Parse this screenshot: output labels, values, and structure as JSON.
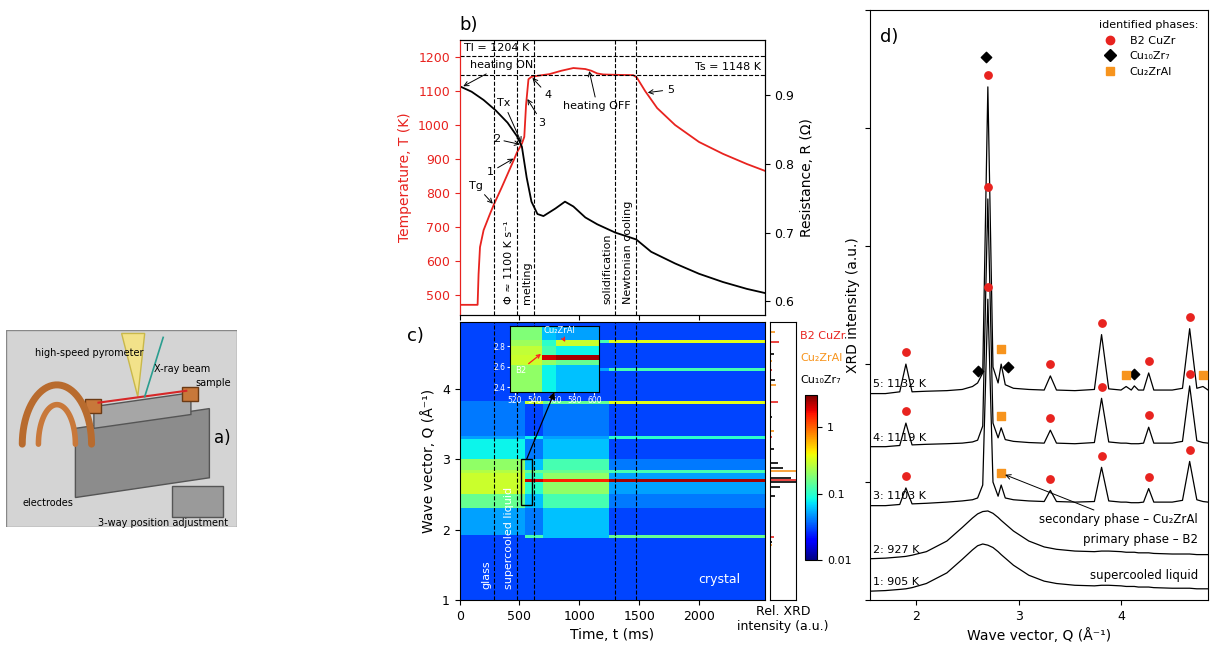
{
  "chart_data": [
    {
      "type": "diagram",
      "panel": "a)",
      "labels": [
        "high-speed pyrometer",
        "X-ray beam",
        "sample",
        "electrodes",
        "3-way position adjustment"
      ]
    },
    {
      "type": "line",
      "panel": "b)",
      "xlim": [
        0,
        2550
      ],
      "xticks": [
        0,
        500,
        1000,
        1500,
        2000
      ],
      "tick_labels": "y",
      "ylabel": "Temperature, T (K)",
      "ylim": [
        440,
        1250
      ],
      "yticks": [
        500,
        600,
        700,
        800,
        900,
        1000,
        1100,
        1200
      ],
      "y2label": "Resistance, R (Ω)",
      "y2lim": [
        0.58,
        0.98
      ],
      "y2ticks": [
        0.6,
        0.7,
        0.8,
        0.9
      ],
      "series": [
        {
          "color": "#e8231f",
          "x": [
            0,
            150,
            158,
            170,
            200,
            250,
            285,
            350,
            400,
            450,
            480,
            520,
            540,
            555,
            575,
            600,
            650,
            750,
            850,
            950,
            1050,
            1100,
            1150,
            1200,
            1300,
            1450,
            1480,
            1550,
            1650,
            1800,
            2000,
            2200,
            2400,
            2550
          ],
          "values": [
            470,
            470,
            560,
            640,
            690,
            735,
            765,
            815,
            855,
            895,
            920,
            945,
            965,
            1060,
            1135,
            1142,
            1145,
            1150,
            1160,
            1168,
            1165,
            1160,
            1152,
            1149,
            1148,
            1147,
            1140,
            1100,
            1050,
            1000,
            950,
            915,
            885,
            865
          ]
        },
        {
          "color": "#000000",
          "axis": "y2",
          "x": [
            0,
            100,
            200,
            300,
            400,
            480,
            520,
            560,
            600,
            650,
            700,
            800,
            880,
            950,
            1050,
            1150,
            1300,
            1475,
            1600,
            1800,
            2000,
            2200,
            2400,
            2550
          ],
          "values": [
            0.913,
            0.905,
            0.893,
            0.878,
            0.86,
            0.84,
            0.825,
            0.78,
            0.745,
            0.727,
            0.724,
            0.735,
            0.745,
            0.738,
            0.722,
            0.712,
            0.7,
            0.69,
            0.672,
            0.655,
            0.64,
            0.628,
            0.618,
            0.612
          ]
        }
      ],
      "hlines": [
        {
          "y": 1204,
          "label": "Tl = 1204 K"
        },
        {
          "y": 1148,
          "label": "Ts = 1148 K"
        }
      ],
      "vlines": [
        {
          "x": 285
        },
        {
          "x": 480,
          "label": "Φ ≈ 1100 K s⁻¹"
        },
        {
          "x": 625,
          "label": "melting"
        },
        {
          "x": 1296,
          "label": "solidification"
        },
        {
          "x": 1474,
          "label": "Newtonian cooling"
        }
      ],
      "annotations": [
        {
          "text": "heating ON",
          "x": 20,
          "y": 0.912,
          "axis": "y2"
        },
        {
          "text": "Tg",
          "x": 285,
          "y": 765
        },
        {
          "text": "Tx",
          "x": 520,
          "y": 945
        },
        {
          "text": "1",
          "x": 460,
          "y": 903
        },
        {
          "text": "2",
          "x": 515,
          "y": 942
        },
        {
          "text": "3",
          "x": 560,
          "y": 1080
        },
        {
          "text": "4",
          "x": 600,
          "y": 1142
        },
        {
          "text": "heating OFF",
          "x": 1080,
          "y": 1163
        },
        {
          "text": "5",
          "x": 1560,
          "y": 1095
        }
      ]
    },
    {
      "type": "heatmap",
      "panel": "c)",
      "xlabel": "Time, t (ms)",
      "ylabel": "Wave vector, Q (Å⁻¹)",
      "xlim": [
        0,
        2550
      ],
      "xticks": [
        0,
        500,
        1000,
        1500,
        2000
      ],
      "ylim": [
        1,
        4.95
      ],
      "yticks": [
        1,
        2,
        3,
        4
      ],
      "x_edges": [
        0,
        548,
        700,
        1250,
        2550
      ],
      "y_edges": [
        1.0,
        1.88,
        1.92,
        2.3,
        2.5,
        2.68,
        2.72,
        2.81,
        2.85,
        3.0,
        3.29,
        3.33,
        3.79,
        3.83,
        4.25,
        4.29,
        4.65,
        4.69,
        4.95
      ],
      "cells": [
        [
          0.03,
          0.03,
          0.03,
          0.03
        ],
        [
          0.03,
          0.12,
          0.06,
          0.15
        ],
        [
          0.05,
          0.04,
          0.06,
          0.03
        ],
        [
          0.15,
          0.06,
          0.12,
          0.04
        ],
        [
          0.3,
          0.1,
          0.2,
          0.05
        ],
        [
          0.3,
          2.0,
          1.5,
          2.5
        ],
        [
          0.3,
          0.1,
          0.2,
          0.05
        ],
        [
          0.25,
          0.15,
          0.15,
          0.12
        ],
        [
          0.2,
          0.06,
          0.12,
          0.04
        ],
        [
          0.08,
          0.04,
          0.06,
          0.03
        ],
        [
          0.05,
          0.08,
          0.05,
          0.1
        ],
        [
          0.04,
          0.03,
          0.04,
          0.03
        ],
        [
          0.04,
          0.3,
          0.15,
          0.35
        ],
        [
          0.03,
          0.03,
          0.03,
          0.03
        ],
        [
          0.03,
          0.1,
          0.05,
          0.12
        ],
        [
          0.03,
          0.03,
          0.03,
          0.03
        ],
        [
          0.03,
          0.3,
          0.12,
          0.35
        ],
        [
          0.03,
          0.03,
          0.03,
          0.03
        ]
      ],
      "colorbar": {
        "lim": [
          0.01,
          3
        ],
        "ticks": [
          0.01,
          0.1,
          1
        ],
        "log": true
      },
      "vlines": [
        {
          "x": 285,
          "label": "glass"
        },
        {
          "x": 480,
          "label": "supercooled liquid"
        },
        {
          "x": 625
        },
        {
          "x": 1296
        },
        {
          "x": 1474
        }
      ],
      "texts": [
        "crystal"
      ],
      "reference_xlabel": "Rel. XRD intensity (a.u.)",
      "reference_xlim": [
        0,
        1
      ],
      "reference_patterns": [
        {
          "name": "B2 CuZr",
          "color": "#e8231f",
          "x": [
            1.9,
            2.7,
            3.31,
            3.81,
            4.27,
            4.67
          ],
          "values": [
            0.15,
            1.0,
            0.08,
            0.3,
            0.1,
            0.35
          ]
        },
        {
          "name": "Cu₂ZrAl",
          "color": "#f7941d",
          "x": [
            1.78,
            2.83,
            3.4,
            4.05,
            4.4,
            4.8
          ],
          "values": [
            0.1,
            1.0,
            0.15,
            0.25,
            0.1,
            0.2
          ]
        },
        {
          "name": "Cu₁₀Zr₇",
          "color": "#000000",
          "x": [
            1.82,
            2.48,
            2.6,
            2.68,
            2.73,
            2.87,
            2.95,
            3.15,
            3.6,
            4.13,
            4.5
          ],
          "values": [
            0.1,
            0.2,
            0.4,
            1.0,
            0.8,
            0.5,
            0.3,
            0.15,
            0.1,
            0.2,
            0.15
          ]
        }
      ],
      "inset": {
        "xlim": [
          515,
          605
        ],
        "xticks": [
          520,
          540,
          560,
          580,
          600
        ],
        "ylim": [
          2.35,
          3.0
        ],
        "yticks": [
          2.4,
          2.6,
          2.8
        ],
        "x_edges": [
          515,
          548,
          562,
          605
        ],
        "y_edges": [
          2.35,
          2.62,
          2.67,
          2.72,
          2.8,
          2.86,
          3.0
        ],
        "cells": [
          [
            0.2,
            0.08,
            0.06
          ],
          [
            0.3,
            0.2,
            0.15
          ],
          [
            0.3,
            2.0,
            2.5
          ],
          [
            0.28,
            0.12,
            0.08
          ],
          [
            0.22,
            0.1,
            0.3
          ],
          [
            0.18,
            0.06,
            0.05
          ]
        ],
        "labels": [
          "Cu₂ZrAl",
          "B2"
        ]
      }
    },
    {
      "type": "line",
      "panel": "d)",
      "xlabel": "Wave vector, Q (Å⁻¹)",
      "ylabel": "XRD intensity (a.u.)",
      "xlim": [
        1.55,
        4.85
      ],
      "xticks": [
        2,
        3,
        4
      ],
      "ylim": [
        0,
        100
      ],
      "yticks": [
        0,
        20,
        40,
        60,
        80,
        100
      ],
      "tick_labels": "x",
      "x": [
        1.55,
        1.7,
        1.84,
        1.9,
        1.96,
        2.1,
        2.3,
        2.45,
        2.55,
        2.6,
        2.65,
        2.7,
        2.75,
        2.8,
        2.83,
        2.87,
        2.95,
        3.1,
        3.25,
        3.31,
        3.37,
        3.55,
        3.74,
        3.81,
        3.88,
        4.0,
        4.05,
        4.1,
        4.13,
        4.17,
        4.22,
        4.27,
        4.32,
        4.5,
        4.6,
        4.67,
        4.74,
        4.8,
        4.85
      ],
      "series": [
        {
          "name": "1: 905 K",
          "color": "#000000",
          "values": [
            1.5,
            1.6,
            1.8,
            1.9,
            2.1,
            2.8,
            4.6,
            6.9,
            8.5,
            9.2,
            9.5,
            9.3,
            8.9,
            8.2,
            7.7,
            7.1,
            5.9,
            4.2,
            3.2,
            3.0,
            2.8,
            2.5,
            2.4,
            2.5,
            2.5,
            2.4,
            2.3,
            2.3,
            2.3,
            2.2,
            2.2,
            2.2,
            2.1,
            2.0,
            2.0,
            2.0,
            1.9,
            1.9,
            1.9
          ]
        },
        {
          "name": "2: 927 K",
          "color": "#000000",
          "values": [
            7.0,
            7.1,
            7.3,
            7.4,
            7.6,
            8.2,
            10.0,
            12.3,
            13.9,
            14.6,
            15.0,
            15.1,
            14.7,
            14.0,
            13.5,
            12.9,
            11.7,
            10.0,
            9.0,
            8.8,
            8.6,
            8.3,
            8.2,
            8.3,
            8.3,
            8.2,
            8.1,
            8.1,
            8.1,
            8.0,
            8.0,
            8.0,
            7.9,
            7.8,
            7.8,
            7.8,
            7.7,
            7.7,
            7.7
          ]
        },
        {
          "name": "3: 1103 K",
          "color": "#000000",
          "values": [
            16.0,
            16.0,
            16.2,
            19.0,
            16.3,
            16.4,
            16.6,
            16.8,
            17.0,
            17.3,
            19.5,
            51.0,
            20.0,
            17.6,
            19.5,
            17.3,
            17.0,
            16.8,
            16.7,
            18.6,
            16.7,
            16.6,
            16.7,
            22.5,
            16.8,
            16.6,
            16.6,
            16.5,
            16.5,
            16.5,
            16.6,
            18.9,
            16.6,
            16.6,
            16.9,
            23.5,
            17.0,
            16.7,
            16.6
          ]
        },
        {
          "name": "4: 1119 K",
          "color": "#000000",
          "values": [
            26.0,
            26.0,
            26.2,
            30.0,
            26.3,
            26.4,
            26.5,
            26.6,
            26.8,
            27.1,
            29.5,
            68.0,
            30.0,
            27.5,
            29.2,
            27.2,
            26.9,
            26.7,
            26.6,
            28.8,
            26.6,
            26.5,
            26.7,
            34.2,
            26.8,
            26.6,
            26.6,
            26.5,
            26.5,
            26.5,
            26.6,
            29.3,
            26.6,
            26.6,
            26.9,
            36.3,
            27.0,
            26.7,
            26.6
          ]
        },
        {
          "name": "5: 1132 K",
          "color": "#000000",
          "values": [
            35.0,
            35.0,
            35.3,
            40.0,
            35.3,
            35.4,
            35.5,
            35.7,
            36.2,
            36.8,
            38.5,
            87.0,
            39.5,
            36.8,
            40.0,
            36.5,
            35.9,
            35.7,
            35.6,
            38.0,
            35.6,
            35.5,
            35.7,
            45.0,
            35.8,
            35.6,
            36.2,
            35.6,
            36.3,
            35.6,
            35.6,
            38.5,
            35.6,
            35.6,
            35.9,
            46.0,
            35.9,
            36.2,
            35.6
          ]
        }
      ],
      "legend": "upper right",
      "legend_title": "identified phases:",
      "phases": [
        {
          "name": "B2 CuZr",
          "color": "#e8231f",
          "marker": "circle",
          "x": [
            1.9,
            2.7,
            3.31,
            3.81,
            4.27,
            4.67,
            1.9,
            2.7,
            3.31,
            3.81,
            4.27,
            4.67,
            1.9,
            2.7,
            3.31,
            3.81,
            4.27,
            4.67
          ],
          "y": [
            21.0,
            53.0,
            20.6,
            24.5,
            20.9,
            25.5,
            32.0,
            70.0,
            30.8,
            36.2,
            31.3,
            38.3,
            42.0,
            89.0,
            40.0,
            47.0,
            40.5,
            48.0
          ]
        },
        {
          "name": "Cu₁₀Zr₇",
          "color": "#000000",
          "marker": "diamond",
          "x": [
            2.6,
            2.68,
            2.9,
            4.13
          ],
          "y": [
            38.8,
            92.0,
            39.5,
            38.3
          ]
        },
        {
          "name": "Cu₂ZrAl",
          "color": "#f7941d",
          "marker": "square",
          "x": [
            2.83,
            2.83,
            2.83,
            4.05,
            4.8
          ],
          "y": [
            21.5,
            31.2,
            42.5,
            38.2,
            38.2
          ]
        }
      ],
      "notes": [
        "supercooled liquid",
        "primary phase – B2",
        "secondary phase – Cu₂ZrAl"
      ]
    }
  ]
}
